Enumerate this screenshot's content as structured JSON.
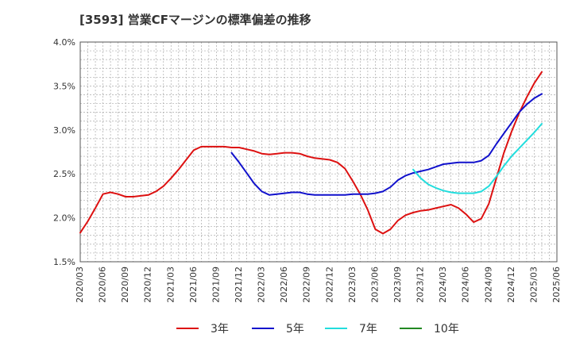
{
  "chart_data": {
    "type": "line",
    "title": "[3593]  営業CFマージンの標準偏差の推移",
    "xlabel": "",
    "ylabel": "",
    "ylim": [
      1.5,
      4.0
    ],
    "y_ticks": [
      "1.5%",
      "2.0%",
      "2.5%",
      "3.0%",
      "3.5%",
      "4.0%"
    ],
    "y_tick_values": [
      1.5,
      2.0,
      2.5,
      3.0,
      3.5,
      4.0
    ],
    "x_ticks": [
      "2020/03",
      "2020/06",
      "2020/09",
      "2020/12",
      "2021/03",
      "2021/06",
      "2021/09",
      "2021/12",
      "2022/03",
      "2022/06",
      "2022/09",
      "2022/12",
      "2023/03",
      "2023/06",
      "2023/09",
      "2023/12",
      "2024/03",
      "2024/06",
      "2024/09",
      "2024/12",
      "2025/03",
      "2025/06"
    ],
    "grid": true,
    "legend_position": "bottom",
    "series": [
      {
        "name": "3年",
        "color": "#dd1111",
        "points": [
          [
            "2020/03",
            1.83
          ],
          [
            "2020/04",
            1.96
          ],
          [
            "2020/05",
            2.11
          ],
          [
            "2020/06",
            2.27
          ],
          [
            "2020/07",
            2.29
          ],
          [
            "2020/08",
            2.27
          ],
          [
            "2020/09",
            2.24
          ],
          [
            "2020/10",
            2.24
          ],
          [
            "2020/11",
            2.25
          ],
          [
            "2020/12",
            2.26
          ],
          [
            "2021/01",
            2.3
          ],
          [
            "2021/02",
            2.36
          ],
          [
            "2021/03",
            2.45
          ],
          [
            "2021/04",
            2.55
          ],
          [
            "2021/05",
            2.66
          ],
          [
            "2021/06",
            2.77
          ],
          [
            "2021/07",
            2.81
          ],
          [
            "2021/08",
            2.81
          ],
          [
            "2021/09",
            2.81
          ],
          [
            "2021/10",
            2.81
          ],
          [
            "2021/11",
            2.8
          ],
          [
            "2021/12",
            2.8
          ],
          [
            "2022/01",
            2.78
          ],
          [
            "2022/02",
            2.76
          ],
          [
            "2022/03",
            2.73
          ],
          [
            "2022/04",
            2.72
          ],
          [
            "2022/05",
            2.73
          ],
          [
            "2022/06",
            2.74
          ],
          [
            "2022/07",
            2.74
          ],
          [
            "2022/08",
            2.73
          ],
          [
            "2022/09",
            2.7
          ],
          [
            "2022/10",
            2.68
          ],
          [
            "2022/11",
            2.67
          ],
          [
            "2022/12",
            2.66
          ],
          [
            "2023/01",
            2.63
          ],
          [
            "2023/02",
            2.56
          ],
          [
            "2023/03",
            2.42
          ],
          [
            "2023/04",
            2.27
          ],
          [
            "2023/05",
            2.09
          ],
          [
            "2023/06",
            1.87
          ],
          [
            "2023/07",
            1.82
          ],
          [
            "2023/08",
            1.87
          ],
          [
            "2023/09",
            1.97
          ],
          [
            "2023/10",
            2.03
          ],
          [
            "2023/11",
            2.06
          ],
          [
            "2023/12",
            2.08
          ],
          [
            "2024/01",
            2.09
          ],
          [
            "2024/02",
            2.11
          ],
          [
            "2024/03",
            2.13
          ],
          [
            "2024/04",
            2.15
          ],
          [
            "2024/05",
            2.11
          ],
          [
            "2024/06",
            2.04
          ],
          [
            "2024/07",
            1.95
          ],
          [
            "2024/08",
            1.99
          ],
          [
            "2024/09",
            2.16
          ],
          [
            "2024/10",
            2.45
          ],
          [
            "2024/11",
            2.74
          ],
          [
            "2024/12",
            2.98
          ],
          [
            "2025/01",
            3.19
          ],
          [
            "2025/02",
            3.37
          ],
          [
            "2025/03",
            3.53
          ],
          [
            "2025/04",
            3.66
          ]
        ]
      },
      {
        "name": "5年",
        "color": "#1111cc",
        "points": [
          [
            "2021/11",
            2.74
          ],
          [
            "2021/12",
            2.63
          ],
          [
            "2022/01",
            2.51
          ],
          [
            "2022/02",
            2.39
          ],
          [
            "2022/03",
            2.3
          ],
          [
            "2022/04",
            2.26
          ],
          [
            "2022/05",
            2.27
          ],
          [
            "2022/06",
            2.28
          ],
          [
            "2022/07",
            2.29
          ],
          [
            "2022/08",
            2.29
          ],
          [
            "2022/09",
            2.27
          ],
          [
            "2022/10",
            2.26
          ],
          [
            "2022/11",
            2.26
          ],
          [
            "2022/12",
            2.26
          ],
          [
            "2023/01",
            2.26
          ],
          [
            "2023/02",
            2.26
          ],
          [
            "2023/03",
            2.27
          ],
          [
            "2023/04",
            2.27
          ],
          [
            "2023/05",
            2.27
          ],
          [
            "2023/06",
            2.28
          ],
          [
            "2023/07",
            2.3
          ],
          [
            "2023/08",
            2.35
          ],
          [
            "2023/09",
            2.43
          ],
          [
            "2023/10",
            2.48
          ],
          [
            "2023/11",
            2.51
          ],
          [
            "2023/12",
            2.53
          ],
          [
            "2024/01",
            2.55
          ],
          [
            "2024/02",
            2.58
          ],
          [
            "2024/03",
            2.61
          ],
          [
            "2024/04",
            2.62
          ],
          [
            "2024/05",
            2.63
          ],
          [
            "2024/06",
            2.63
          ],
          [
            "2024/07",
            2.63
          ],
          [
            "2024/08",
            2.65
          ],
          [
            "2024/09",
            2.71
          ],
          [
            "2024/10",
            2.84
          ],
          [
            "2024/11",
            2.96
          ],
          [
            "2024/12",
            3.08
          ],
          [
            "2025/01",
            3.2
          ],
          [
            "2025/02",
            3.29
          ],
          [
            "2025/03",
            3.36
          ],
          [
            "2025/04",
            3.41
          ]
        ]
      },
      {
        "name": "7年",
        "color": "#22dddd",
        "points": [
          [
            "2023/11",
            2.55
          ],
          [
            "2023/12",
            2.45
          ],
          [
            "2024/01",
            2.38
          ],
          [
            "2024/02",
            2.34
          ],
          [
            "2024/03",
            2.31
          ],
          [
            "2024/04",
            2.29
          ],
          [
            "2024/05",
            2.28
          ],
          [
            "2024/06",
            2.28
          ],
          [
            "2024/07",
            2.28
          ],
          [
            "2024/08",
            2.3
          ],
          [
            "2024/09",
            2.36
          ],
          [
            "2024/10",
            2.47
          ],
          [
            "2024/11",
            2.59
          ],
          [
            "2024/12",
            2.7
          ],
          [
            "2025/01",
            2.79
          ],
          [
            "2025/02",
            2.88
          ],
          [
            "2025/03",
            2.97
          ],
          [
            "2025/04",
            3.07
          ]
        ]
      },
      {
        "name": "10年",
        "color": "#228822",
        "points": []
      }
    ]
  }
}
